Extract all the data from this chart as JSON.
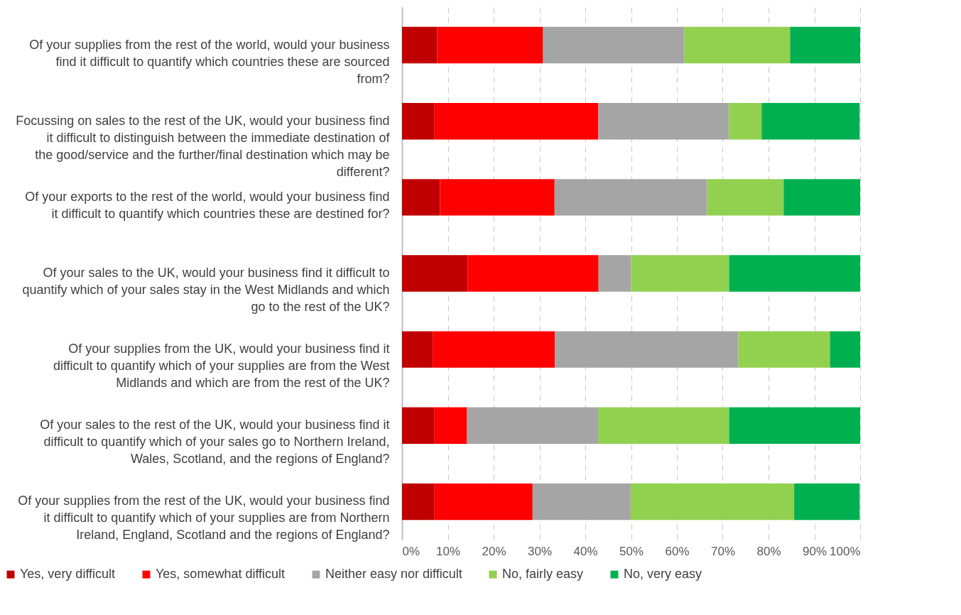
{
  "chart_data": {
    "type": "bar",
    "orientation": "horizontal",
    "stacked": true,
    "categories": [
      "Of your supplies from the rest of the world, would your business find it difficult to quantify which countries these are sourced from?",
      "Focussing on sales to the rest of the UK, would your business find it difficult to distinguish between the immediate destination of the good/service and the further/final destination which may be different?",
      "Of your exports to the rest of the world, would your business find it difficult to quantify which countries these are destined for?",
      "Of your sales to the UK, would your business find it difficult to quantify which of your sales stay in the West Midlands and which go to the rest of the UK?",
      "Of your supplies from the UK, would your business find it difficult to quantify which of your supplies are from the West Midlands and which are from the rest of the UK?",
      "Of your sales to the rest of the UK, would your business find it difficult to quantify which of your sales go to Northern Ireland, Wales, Scotland, and the regions of England?",
      "Of your supplies from the rest of the UK, would your business find it difficult to quantify which of your supplies are from Northern Ireland, England, Scotland and the regions of England?"
    ],
    "series": [
      {
        "name": "Yes, very difficult",
        "color": "#c00000",
        "values": [
          7.7,
          7.1,
          8.3,
          14.3,
          6.7,
          7.1,
          7.1
        ]
      },
      {
        "name": "Yes, somewhat difficult",
        "color": "#ff0000",
        "values": [
          23.1,
          35.7,
          25,
          28.6,
          26.7,
          7.1,
          21.4
        ]
      },
      {
        "name": "Neither easy nor difficult",
        "color": "#a5a5a5",
        "values": [
          30.8,
          28.6,
          33.3,
          7.1,
          40,
          28.6,
          21.4
        ]
      },
      {
        "name": "No, fairly easy",
        "color": "#92d050",
        "values": [
          23.1,
          7.1,
          16.7,
          21.4,
          20,
          28.6,
          35.7
        ]
      },
      {
        "name": "No, very easy",
        "color": "#00b050",
        "values": [
          15.3,
          21.4,
          16.7,
          28.6,
          6.6,
          28.6,
          14.3
        ]
      }
    ],
    "xlim": [
      0,
      100
    ],
    "xticks": [
      {
        "value": 0,
        "label": "0%"
      },
      {
        "value": 10,
        "label": "10%"
      },
      {
        "value": 20,
        "label": "20%"
      },
      {
        "value": 30,
        "label": "30%"
      },
      {
        "value": 40,
        "label": "40%"
      },
      {
        "value": 50,
        "label": "50%"
      },
      {
        "value": 60,
        "label": "60%"
      },
      {
        "value": 70,
        "label": "70%"
      },
      {
        "value": 80,
        "label": "80%"
      },
      {
        "value": 90,
        "label": "90%"
      },
      {
        "value": 100,
        "label": "100%"
      }
    ],
    "grid": "x",
    "legend": "bottom"
  }
}
